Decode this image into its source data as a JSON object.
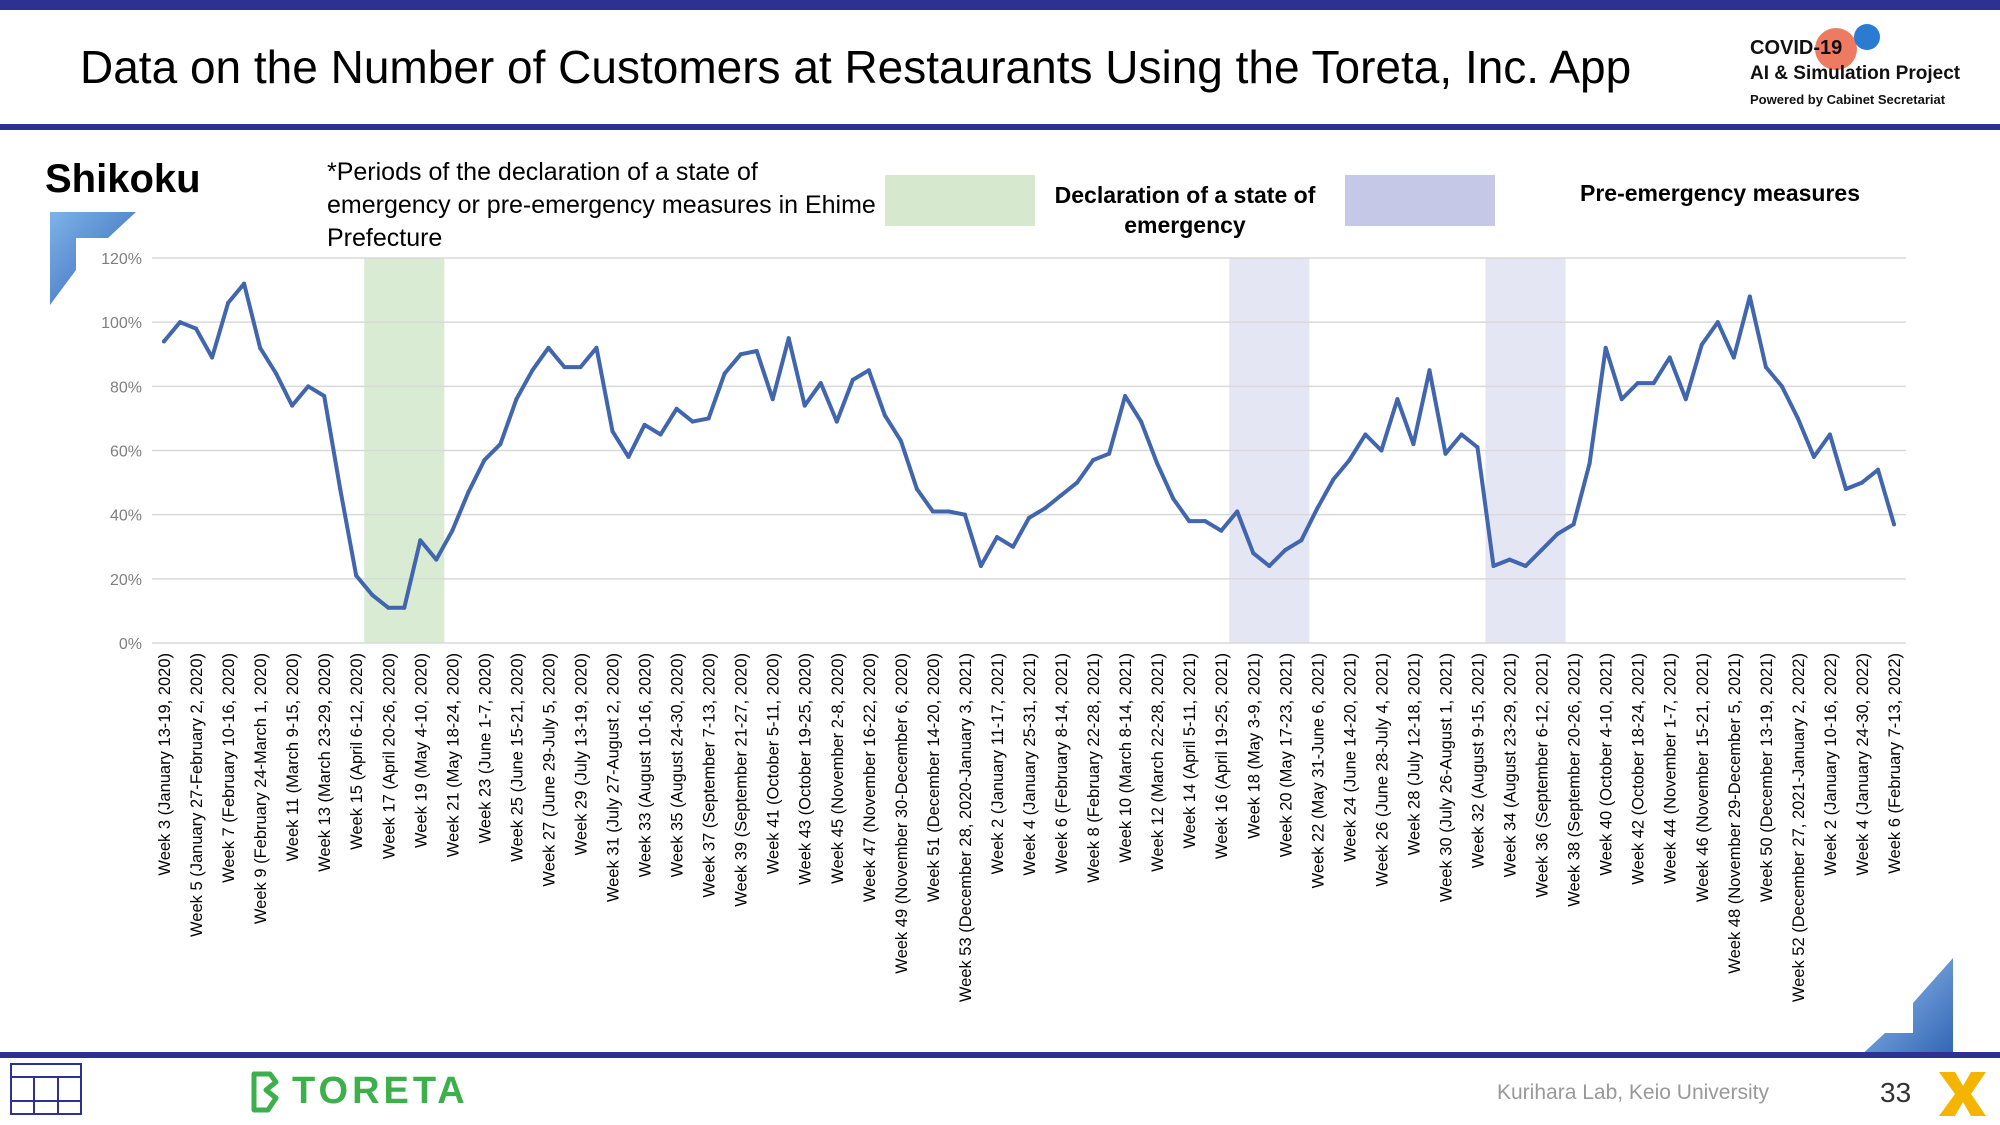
{
  "header": {
    "title": "Data on the Number of Customers at Restaurants Using the Toreta, Inc. App",
    "logo_line1": "COVID-19",
    "logo_line2": "AI & Simulation Project",
    "logo_line3": "Powered by Cabinet Secretariat"
  },
  "region": "Shikoku",
  "note": "*Periods of the declaration of a state of emergency or pre-emergency measures in Ehime Prefecture",
  "legend": {
    "emergency": "Declaration of a state of emergency",
    "pre_emergency": "Pre-emergency measures"
  },
  "footer": {
    "brand": "TORETA",
    "lab": "Kurihara Lab, Keio University",
    "page": "33"
  },
  "colors": {
    "line": "#4166ad",
    "emergency": "#d6e9cf",
    "pre_emergency": "#c5c8e6",
    "accent_bar": "#2e3192",
    "brand": "#3db04b"
  },
  "chart_data": {
    "type": "line",
    "title": "",
    "xlabel": "",
    "ylabel": "",
    "ylim": [
      0,
      120
    ],
    "yticks": [
      "0%",
      "20%",
      "40%",
      "60%",
      "80%",
      "100%",
      "120%"
    ],
    "grid": true,
    "tick_labels": [
      "Week 3 (January 13-19, 2020)",
      "Week 5 (January 27-February 2, 2020)",
      "Week 7 (February 10-16, 2020)",
      "Week 9 (February 24-March 1, 2020)",
      "Week 11 (March 9-15, 2020)",
      "Week 13 (March 23-29, 2020)",
      "Week 15 (April 6-12, 2020)",
      "Week 17 (April 20-26, 2020)",
      "Week 19 (May 4-10, 2020)",
      "Week 21 (May 18-24, 2020)",
      "Week 23 (June 1-7, 2020)",
      "Week 25 (June 15-21, 2020)",
      "Week 27 (June 29-July 5, 2020)",
      "Week 29 (July 13-19, 2020)",
      "Week 31 (July 27-August 2, 2020)",
      "Week 33 (August 10-16, 2020)",
      "Week 35 (August 24-30, 2020)",
      "Week 37 (September 7-13, 2020)",
      "Week 39 (September 21-27, 2020)",
      "Week 41 (October 5-11, 2020)",
      "Week 43 (October 19-25, 2020)",
      "Week 45 (November 2-8, 2020)",
      "Week 47 (November 16-22, 2020)",
      "Week 49 (November 30-December 6, 2020)",
      "Week 51 (December 14-20, 2020)",
      "Week 53 (December 28, 2020-January 3, 2021)",
      "Week 2 (January 11-17, 2021)",
      "Week 4 (January 25-31, 2021)",
      "Week 6 (February 8-14, 2021)",
      "Week 8 (February 22-28, 2021)",
      "Week 10 (March 8-14, 2021)",
      "Week 12 (March 22-28, 2021)",
      "Week 14 (April 5-11, 2021)",
      "Week 16 (April 19-25, 2021)",
      "Week 18 (May 3-9, 2021)",
      "Week 20 (May 17-23, 2021)",
      "Week 22 (May 31-June 6, 2021)",
      "Week 24 (June 14-20, 2021)",
      "Week 26 (June 28-July 4, 2021)",
      "Week 28 (July 12-18, 2021)",
      "Week 30 (July 26-August 1, 2021)",
      "Week 32 (August 9-15, 2021)",
      "Week 34 (August 23-29, 2021)",
      "Week 36 (September 6-12, 2021)",
      "Week 38 (September 20-26, 2021)",
      "Week 40 (October 4-10, 2021)",
      "Week 42 (October 18-24, 2021)",
      "Week 44 (November 1-7, 2021)",
      "Week 46 (November 15-21, 2021)",
      "Week 48 (November 29-December 5, 2021)",
      "Week 50 (December 13-19, 2021)",
      "Week 52 (December 27, 2021-January 2, 2022)",
      "Week 2 (January 10-16, 2022)",
      "Week 4 (January 24-30, 2022)",
      "Week 6 (February 7-13, 2022)"
    ],
    "series": [
      {
        "values": [
          94,
          100,
          98,
          89,
          106,
          112,
          92,
          84,
          74,
          80,
          77,
          48,
          21,
          15,
          11,
          11,
          32,
          26,
          35,
          47,
          57,
          62,
          76,
          85,
          92,
          86,
          86,
          92,
          66,
          58,
          68,
          65,
          73,
          69,
          70,
          84,
          90,
          91,
          76,
          95,
          74,
          81,
          69,
          82,
          85,
          71,
          63,
          48,
          41,
          41,
          40,
          24,
          33,
          30,
          39,
          42,
          46,
          50,
          57,
          59,
          77,
          69,
          56,
          45,
          38,
          38,
          35,
          41,
          28,
          24,
          29,
          32,
          42,
          51,
          57,
          65,
          60,
          76,
          62,
          85,
          59,
          65,
          61,
          24,
          26,
          24,
          29,
          34,
          37,
          56,
          92,
          76,
          81,
          81,
          89,
          76,
          93,
          100,
          89,
          108,
          86,
          80,
          70,
          58,
          65,
          48,
          50,
          54,
          37
        ]
      }
    ],
    "shaded_periods": [
      {
        "kind": "emergency",
        "start_index": 13,
        "end_index": 17
      },
      {
        "kind": "pre_emergency",
        "start_index": 67,
        "end_index": 71
      },
      {
        "kind": "pre_emergency",
        "start_index": 83,
        "end_index": 87
      }
    ]
  }
}
